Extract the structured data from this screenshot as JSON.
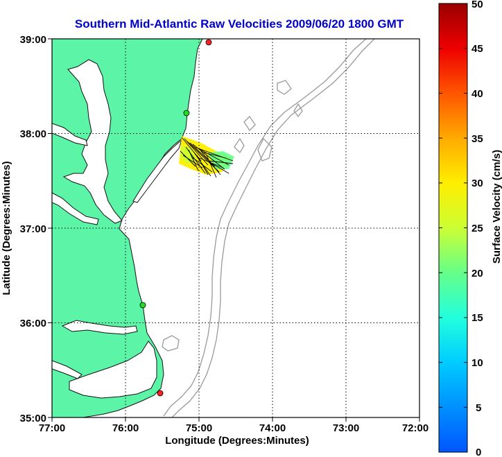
{
  "title": "Southern Mid-Atlantic Raw Velocities 2009/06/20 1800 GMT",
  "map": {
    "xlabel": "Longitude (Degrees:Minutes)",
    "ylabel": "Latitude (Degrees:Minutes)",
    "lon_ticks": [
      "77:00",
      "76:00",
      "75:00",
      "74:00",
      "73:00",
      "72:00"
    ],
    "lat_ticks": [
      "39:00",
      "38:00",
      "37:00",
      "36:00",
      "35:00"
    ],
    "land_color": "#5cf5a8",
    "contour_color": "#999999",
    "grid": "dotted",
    "stations": [
      {
        "status": "red",
        "color": "#ff2222"
      },
      {
        "status": "green",
        "color": "#22dd22"
      },
      {
        "status": "green",
        "color": "#22dd22"
      },
      {
        "status": "red",
        "color": "#ff2222"
      }
    ]
  },
  "colorbar": {
    "label": "Surface Velocity (cm/s)",
    "ticks": [
      "50",
      "45",
      "40",
      "35",
      "30",
      "25",
      "20",
      "15",
      "10",
      "5",
      "0"
    ],
    "min": 0,
    "max": 50,
    "colormap": "jet"
  }
}
